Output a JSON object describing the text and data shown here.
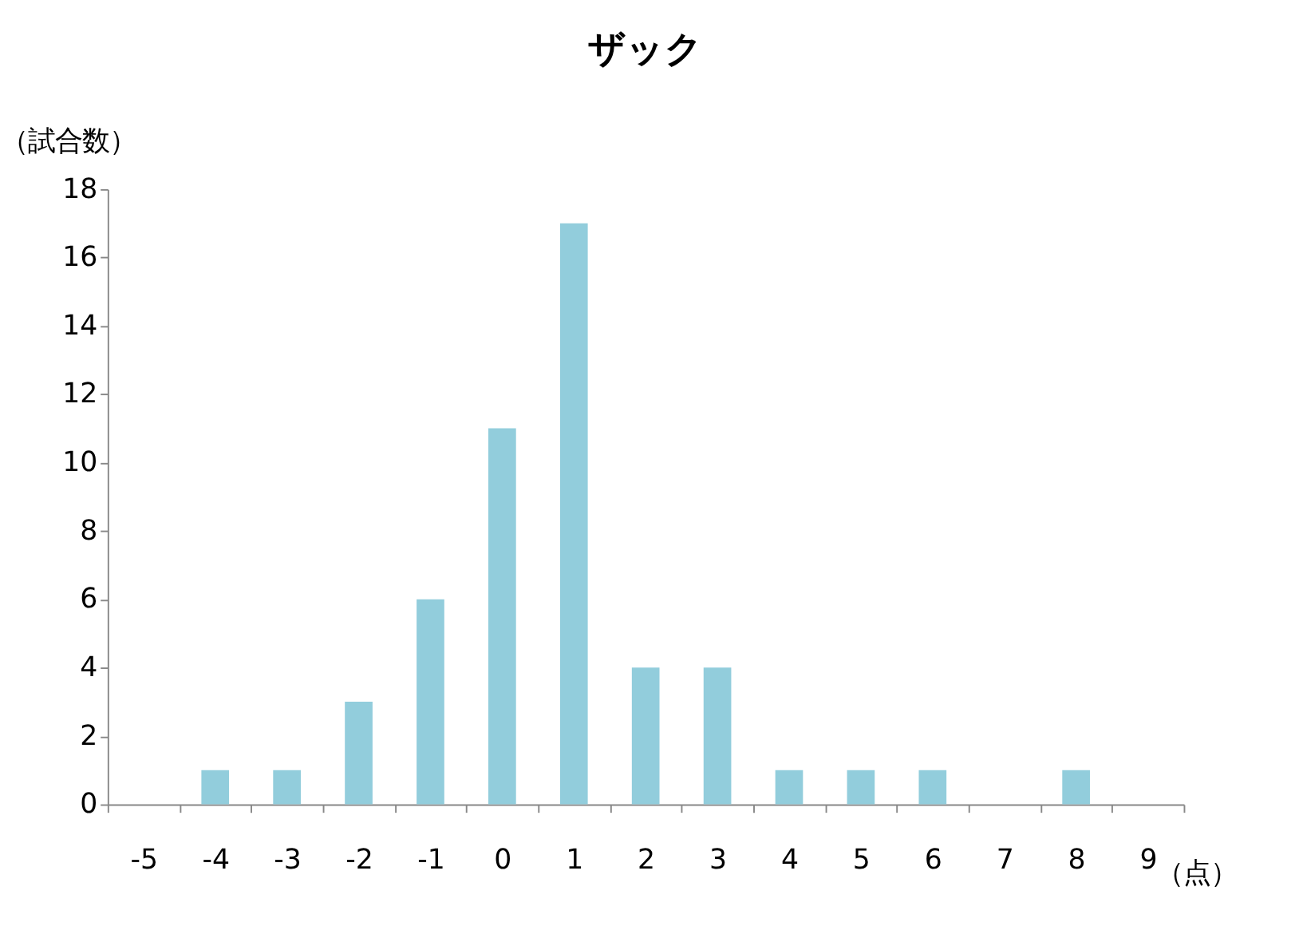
{
  "chart_data": {
    "type": "bar",
    "title": "ザック",
    "xlabel": "（点）",
    "ylabel": "（試合数）",
    "categories": [
      "-5",
      "-4",
      "-3",
      "-2",
      "-1",
      "0",
      "1",
      "2",
      "3",
      "4",
      "5",
      "6",
      "7",
      "8",
      "9"
    ],
    "values": [
      0,
      1,
      1,
      3,
      6,
      11,
      17,
      4,
      4,
      1,
      1,
      1,
      0,
      1,
      0
    ],
    "color": "#92cddc",
    "ylim": [
      0,
      18
    ],
    "yticks": [
      0,
      2,
      4,
      6,
      8,
      10,
      12,
      14,
      16,
      18
    ],
    "grid": false
  }
}
